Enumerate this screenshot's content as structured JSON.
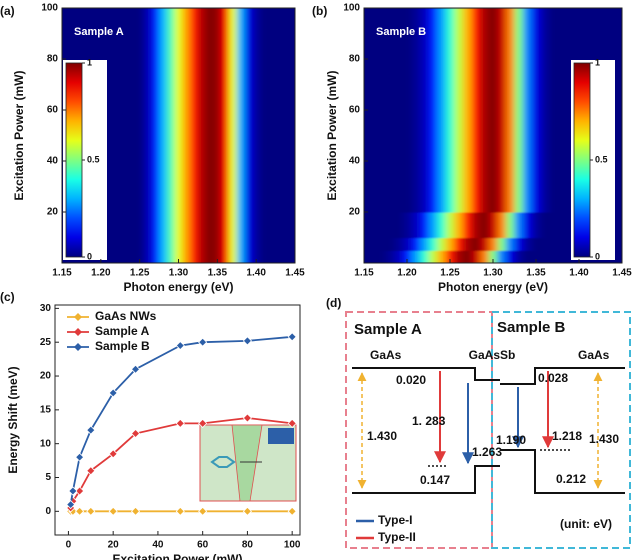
{
  "chart_data": [
    {
      "type": "heatmap",
      "label": "(a)",
      "annotation": "Sample A",
      "xlabel": "Photon energy (eV)",
      "ylabel": "Excitation Power (mW)",
      "x": [
        1.15,
        1.16,
        1.17,
        1.18,
        1.19,
        1.2,
        1.21,
        1.22,
        1.23,
        1.24,
        1.25,
        1.26,
        1.27,
        1.28,
        1.29,
        1.3,
        1.31,
        1.32,
        1.33,
        1.34,
        1.35,
        1.36,
        1.37,
        1.38,
        1.39,
        1.4,
        1.41,
        1.42,
        1.43,
        1.44,
        1.45
      ],
      "y_edges": [
        0,
        100
      ],
      "values": [
        [
          0,
          0,
          0,
          0,
          0,
          0,
          0,
          0,
          0,
          0,
          0,
          0.05,
          0.15,
          0.3,
          0.45,
          0.6,
          0.72,
          0.85,
          0.95,
          1,
          0.98,
          0.88,
          0.6,
          0.3,
          0.1,
          0.03,
          0,
          0,
          0,
          0,
          0
        ]
      ],
      "xlim": [
        1.15,
        1.45
      ],
      "ylim": [
        0,
        100
      ],
      "xticks": [
        1.15,
        {
          "value": 1.2,
          "label": "1.20"
        },
        1.25,
        {
          "value": 1.3,
          "label": "1.30"
        },
        1.35,
        {
          "value": 1.4,
          "label": "1.40"
        },
        1.45
      ],
      "yticks": [
        20,
        40,
        60,
        80,
        100
      ],
      "colormap": "jet",
      "clim": [
        0,
        1
      ],
      "colorbar": {
        "position": "left",
        "ticks": [
          0,
          0.5,
          1
        ]
      }
    },
    {
      "type": "heatmap",
      "label": "(b)",
      "annotation": "Sample B",
      "xlabel": "Photon energy (eV)",
      "ylabel": "Excitation Power (mW)",
      "x": [
        1.15,
        1.16,
        1.17,
        1.18,
        1.19,
        1.2,
        1.21,
        1.22,
        1.23,
        1.24,
        1.25,
        1.26,
        1.27,
        1.28,
        1.29,
        1.3,
        1.31,
        1.32,
        1.33,
        1.34,
        1.35,
        1.36,
        1.37,
        1.38,
        1.39,
        1.4,
        1.41,
        1.42,
        1.43,
        1.44,
        1.45
      ],
      "y_edges": [
        0,
        5,
        10,
        20,
        100
      ],
      "values": [
        [
          0,
          0,
          0,
          0.02,
          0.06,
          0.15,
          0.28,
          0.42,
          0.56,
          0.7,
          0.85,
          0.96,
          1,
          0.93,
          0.75,
          0.5,
          0.25,
          0.1,
          0.03,
          0,
          0,
          0,
          0,
          0,
          0,
          0,
          0,
          0,
          0,
          0,
          0
        ],
        [
          0,
          0,
          0,
          0,
          0.02,
          0.06,
          0.15,
          0.28,
          0.42,
          0.56,
          0.7,
          0.85,
          0.96,
          1,
          0.93,
          0.75,
          0.5,
          0.25,
          0.1,
          0.03,
          0,
          0,
          0,
          0,
          0,
          0,
          0,
          0,
          0,
          0,
          0
        ],
        [
          0,
          0,
          0,
          0,
          0,
          0.02,
          0.06,
          0.15,
          0.28,
          0.42,
          0.56,
          0.7,
          0.85,
          0.96,
          1,
          0.93,
          0.75,
          0.5,
          0.25,
          0.1,
          0.03,
          0,
          0,
          0,
          0,
          0,
          0,
          0,
          0,
          0,
          0
        ],
        [
          0,
          0,
          0,
          0,
          0,
          0,
          0.02,
          0.06,
          0.15,
          0.28,
          0.42,
          0.56,
          0.7,
          0.85,
          0.96,
          1,
          0.93,
          0.75,
          0.5,
          0.25,
          0.1,
          0.03,
          0,
          0,
          0,
          0,
          0,
          0,
          0,
          0,
          0
        ]
      ],
      "xlim": [
        1.15,
        1.45
      ],
      "ylim": [
        0,
        100
      ],
      "xticks": [
        1.15,
        {
          "value": 1.2,
          "label": "1.20"
        },
        1.25,
        {
          "value": 1.3,
          "label": "1.30"
        },
        1.35,
        {
          "value": 1.4,
          "label": "1.40"
        },
        1.45
      ],
      "yticks": [
        20,
        40,
        60,
        80,
        100
      ],
      "colormap": "jet",
      "clim": [
        0,
        1
      ],
      "colorbar": {
        "position": "right",
        "ticks": [
          0,
          0.5,
          1
        ]
      }
    },
    {
      "type": "line",
      "label": "(c)",
      "xlabel": "Excitation Power (mW)",
      "ylabel": "Energy Shift (meV)",
      "x": [
        1,
        2,
        5,
        10,
        20,
        30,
        50,
        60,
        80,
        100
      ],
      "series": [
        {
          "name": "GaAs NWs",
          "color": "#f0b230",
          "values": [
            0,
            0,
            0,
            0,
            0,
            0,
            0,
            0,
            0,
            0
          ]
        },
        {
          "name": "Sample A",
          "color": "#e03a3a",
          "values": [
            0.5,
            1.5,
            3,
            6,
            8.5,
            11.5,
            13,
            13,
            13.8,
            13
          ]
        },
        {
          "name": "Sample B",
          "color": "#2c5fa8",
          "values": [
            1,
            3,
            8,
            12,
            17.5,
            21,
            24.5,
            25,
            25.2,
            25.8
          ]
        }
      ],
      "xlim": [
        -6,
        103.5
      ],
      "ylim": [
        -3.5,
        30.5
      ],
      "xticks": [
        0,
        20,
        40,
        60,
        80,
        100
      ],
      "yticks": [
        0,
        5,
        10,
        15,
        20,
        25,
        30
      ],
      "legend": "upper left"
    }
  ],
  "diagram": {
    "label": "(d)",
    "samples": [
      "Sample A",
      "Sample B"
    ],
    "materials": [
      "GaAs",
      "GaAsSb",
      "GaAs"
    ],
    "energies": [
      "0.020",
      "1. 283",
      "1.263",
      "1.430",
      "0.147",
      "0.028",
      "1.218",
      "1.190",
      "1.430",
      "0.212"
    ],
    "legend": [
      "Type-I",
      "Type-II"
    ],
    "unit": "(unit: eV)"
  }
}
